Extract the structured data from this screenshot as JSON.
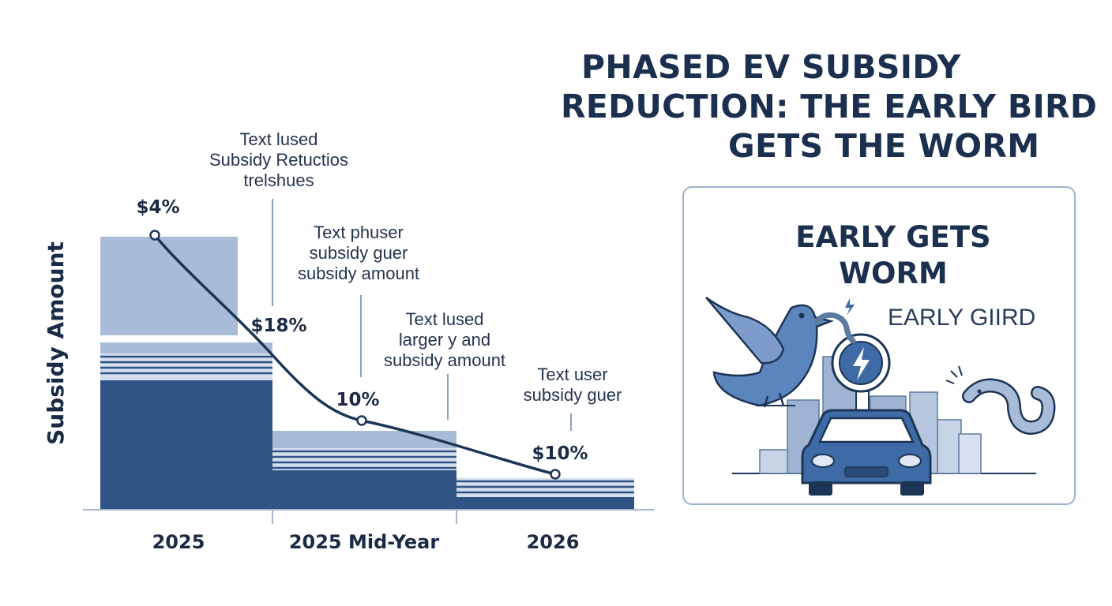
{
  "title": {
    "line1": "PHASED EV SUBSIDY",
    "line2": "REDUCTION: THE EARLY BIRD",
    "line3": "GETS THE WORM"
  },
  "panel": {
    "heading_line1": "EARLY GETS",
    "heading_line2": "WORM",
    "subtext": "EARLY GIIRD",
    "illustration_icons": [
      "bird-icon",
      "worm-icon",
      "car-icon",
      "lightning-bolt-icon",
      "city-skyline-icon"
    ]
  },
  "chart_data": {
    "type": "bar",
    "ylabel": "Subsidy Amount",
    "xlabel": "",
    "categories": [
      "2025",
      "2025 Mid-Year",
      "2026"
    ],
    "bars_dark": [
      82,
      25,
      8
    ],
    "bars_light_top": [
      173,
      50,
      20
    ],
    "line": {
      "values": [
        172,
        55,
        23
      ],
      "labels": [
        "$4%",
        "10%",
        "$10%"
      ],
      "x_positions": [
        0.6,
        1.5,
        2.55
      ]
    },
    "step_label": {
      "text": "$18%",
      "position": 1.0
    },
    "ylim": [
      0,
      200
    ],
    "annotations": [
      {
        "lines": [
          "Text lused",
          "Subsidy Retuctios",
          "trelshues"
        ]
      },
      {
        "lines": [
          "Text phuser",
          "subsidy guer",
          "subsidy amount"
        ]
      },
      {
        "lines": [
          "Text lused",
          "larger y and",
          "subsidy amount"
        ]
      },
      {
        "lines": [
          "Text user",
          "subsidy guer"
        ]
      }
    ],
    "colors": {
      "dark": "#2f5384",
      "light": "#a8bcd8",
      "line": "#1c3556",
      "axis": "#a7b6ca",
      "text": "#1b2b45"
    }
  }
}
